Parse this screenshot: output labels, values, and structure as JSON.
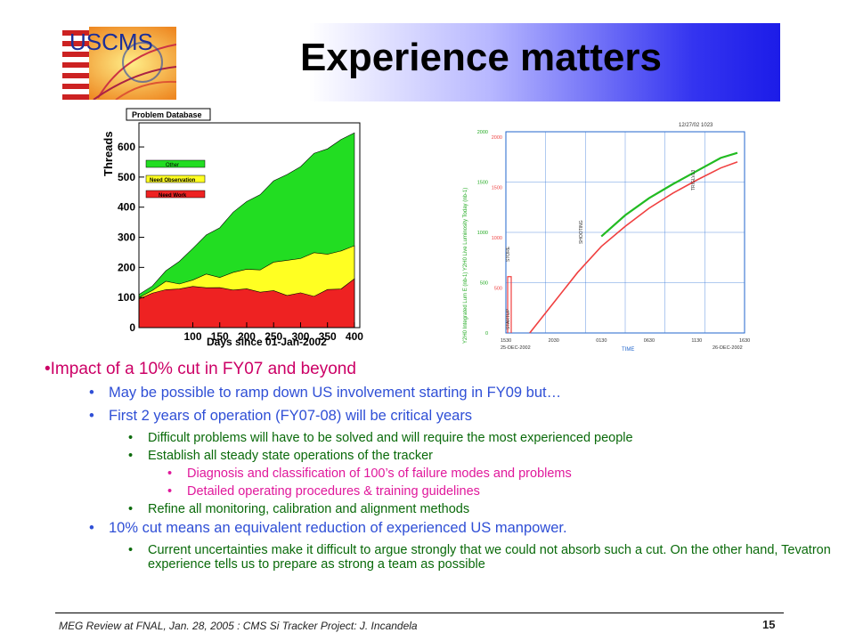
{
  "header": {
    "title": "Experience matters",
    "logo_text": "USCMS"
  },
  "chart_data": [
    {
      "type": "area",
      "title": "Problem Database",
      "ylabel": "Threads",
      "xlabel": "Days since 01-Jan-2002",
      "xlim": [
        0,
        410
      ],
      "ylim": [
        0,
        680
      ],
      "x_ticks": [
        100,
        150,
        200,
        250,
        300,
        350,
        400
      ],
      "y_ticks": [
        0,
        100,
        200,
        300,
        400,
        500,
        600
      ],
      "legend": [
        "Other",
        "Need Observation",
        "Need Work"
      ],
      "legend_colors": [
        "#22dd22",
        "#ffff22",
        "#ee2222"
      ],
      "x": [
        0,
        25,
        50,
        75,
        100,
        125,
        150,
        175,
        200,
        225,
        250,
        275,
        300,
        325,
        350,
        375,
        400
      ],
      "series": [
        {
          "name": "Need Work",
          "values": [
            95,
            115,
            125,
            130,
            135,
            135,
            130,
            128,
            125,
            122,
            118,
            112,
            110,
            110,
            120,
            135,
            155
          ]
        },
        {
          "name": "Need Observation",
          "values": [
            100,
            130,
            145,
            150,
            160,
            170,
            175,
            180,
            190,
            200,
            210,
            225,
            235,
            240,
            250,
            255,
            265
          ]
        },
        {
          "name": "Other",
          "values": [
            110,
            145,
            180,
            225,
            265,
            300,
            340,
            380,
            415,
            450,
            480,
            510,
            540,
            570,
            600,
            625,
            640
          ]
        }
      ]
    },
    {
      "type": "line",
      "header_right": "12/27/02 1023",
      "x_ticks": [
        "1530",
        "2030",
        "0130",
        "0630",
        "1130",
        "1630"
      ],
      "x_dates": [
        "25-DEC-2002",
        "26-DEC-2002"
      ],
      "xlabel": "TIME",
      "ylim": [
        0,
        2000
      ],
      "y_ticks": [
        0,
        500,
        1000,
        1500,
        2000
      ],
      "y_ticks_dup": [
        "500",
        "1000",
        "1500",
        "2000"
      ],
      "ylabel": "Y2H0 Integrated Lum E (nb-1)    Y2H0 Live Luminosity Today (nb-1)",
      "annotations": [
        "STARTUP",
        "STORE",
        "SHOOTING",
        "TRIGLVL3"
      ],
      "x": [
        0.1,
        0.2,
        0.3,
        0.4,
        0.5,
        0.6,
        0.7,
        0.8,
        0.9,
        0.97
      ],
      "series": [
        {
          "name": "red",
          "color": "#f04040",
          "values": [
            0,
            300,
            600,
            860,
            1060,
            1240,
            1390,
            1520,
            1640,
            1700
          ]
        },
        {
          "name": "green",
          "color": "#22bb22",
          "values": [
            null,
            null,
            null,
            960,
            1170,
            1340,
            1480,
            1610,
            1740,
            1790
          ]
        }
      ]
    }
  ],
  "bullets": {
    "l0": "Impact of a 10% cut in FY07 and beyond",
    "l1a": "May be possible to ramp down US involvement starting in FY09 but…",
    "l1b": "First 2 years of operation (FY07-08) will be critical years",
    "l2a": "Difficult problems will have to be solved and will require the most experienced people",
    "l2b": "Establish all steady state operations of the tracker",
    "l3a": "Diagnosis and classification of 100’s of failure modes and problems",
    "l3b": "Detailed operating procedures & training guidelines",
    "l2c": "Refine all monitoring, calibration and alignment methods",
    "l1c": "10% cut means an equivalent reduction of experienced US manpower.",
    "l2d": "Current uncertainties make it difficult to argue strongly that we could not absorb such a cut. On the other hand, Tevatron experience tells us to prepare as strong a team as possible"
  },
  "footer": {
    "left": "MEG Review at FNAL, Jan. 28, 2005 : CMS Si Tracker Project: J. Incandela",
    "page": "15"
  }
}
